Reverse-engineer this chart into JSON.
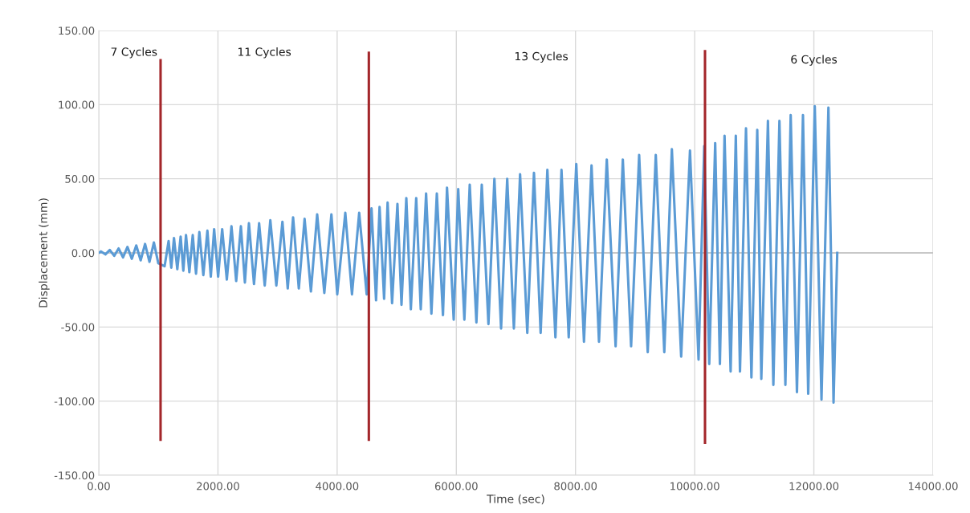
{
  "chart_data": {
    "type": "line",
    "xlabel": "Time (sec)",
    "ylabel": "Displacement (mm)",
    "xlim": [
      0,
      14000
    ],
    "ylim": [
      -150,
      150
    ],
    "xticks": [
      {
        "value": 0,
        "label": "0.00"
      },
      {
        "value": 2000,
        "label": "2000.00"
      },
      {
        "value": 4000,
        "label": "4000.00"
      },
      {
        "value": 6000,
        "label": "6000.00"
      },
      {
        "value": 8000,
        "label": "8000.00"
      },
      {
        "value": 10000,
        "label": "10000.00"
      },
      {
        "value": 12000,
        "label": "12000.00"
      },
      {
        "value": 14000,
        "label": "14000.00"
      }
    ],
    "yticks": [
      {
        "value": -150,
        "label": "-150.00"
      },
      {
        "value": -100,
        "label": "-100.00"
      },
      {
        "value": -50,
        "label": "-50.00"
      },
      {
        "value": 0,
        "label": "0.00"
      },
      {
        "value": 50,
        "label": "50.00"
      },
      {
        "value": 100,
        "label": "100.00"
      },
      {
        "value": 150,
        "label": "150.00"
      }
    ],
    "grid": true,
    "marker": "none",
    "line_style": "solid",
    "series": [
      {
        "color": "#5b9bd5",
        "x": [
          0,
          37,
          111,
          185,
          259,
          333,
          407,
          481,
          555,
          629,
          703,
          777,
          851,
          925,
          999,
          1105,
          1172,
          1217,
          1262,
          1318,
          1374,
          1419,
          1464,
          1520,
          1577,
          1632,
          1688,
          1755,
          1823,
          1880,
          1936,
          2003,
          2071,
          2149,
          2227,
          2306,
          2385,
          2452,
          2520,
          2605,
          2691,
          2785,
          2879,
          2980,
          3082,
          3171,
          3261,
          3357,
          3454,
          3560,
          3665,
          3785,
          3904,
          4002,
          4137,
          4249,
          4370,
          4496,
          4577,
          4653,
          4712,
          4788,
          4847,
          4922,
          5012,
          5080,
          5161,
          5237,
          5327,
          5403,
          5493,
          5582,
          5673,
          5776,
          5844,
          5956,
          6032,
          6135,
          6225,
          6337,
          6427,
          6539,
          6639,
          6751,
          6854,
          6966,
          7070,
          7191,
          7303,
          7415,
          7528,
          7663,
          7765,
          7886,
          8013,
          8142,
          8269,
          8394,
          8525,
          8673,
          8794,
          8933,
          9068,
          9212,
          9347,
          9490,
          9617,
          9773,
          9921,
          10065,
          10160,
          10244,
          10344,
          10423,
          10501,
          10603,
          10690,
          10760,
          10861,
          10952,
          11050,
          11118,
          11229,
          11320,
          11422,
          11522,
          11611,
          11716,
          11817,
          11905,
          12015,
          12128,
          12244,
          12330,
          12392
        ],
        "values": [
          0,
          1,
          -1,
          2,
          -2,
          3,
          -3,
          4,
          -4,
          5,
          -5,
          6,
          -6,
          7,
          -7,
          -9,
          8,
          -10,
          10,
          -11,
          11,
          -12,
          12,
          -13,
          12,
          -14,
          14,
          -15,
          15,
          -16,
          16,
          -16,
          16,
          -18,
          18,
          -19,
          18,
          -20,
          20,
          -21,
          20,
          -22,
          22,
          -22,
          21,
          -24,
          24,
          -24,
          23,
          -26,
          26,
          -27,
          26,
          -28,
          27,
          -28,
          27,
          -28,
          30,
          -32,
          31,
          -31,
          34,
          -34,
          33,
          -35,
          37,
          -38,
          37,
          -38,
          40,
          -41,
          40,
          -42,
          44,
          -45,
          43,
          -45,
          46,
          -47,
          46,
          -48,
          50,
          -51,
          50,
          -51,
          53,
          -54,
          54,
          -54,
          56,
          -57,
          56,
          -57,
          60,
          -60,
          59,
          -60,
          63,
          -63,
          63,
          -63,
          66,
          -67,
          66,
          -67,
          70,
          -70,
          69,
          -72,
          72,
          -75,
          74,
          -75,
          79,
          -80,
          79,
          -80,
          84,
          -84,
          83,
          -85,
          89,
          -89,
          89,
          -89,
          93,
          -94,
          93,
          -95,
          99,
          -99,
          98,
          -101,
          0
        ]
      },
      {
        "color": "#a3262a",
        "x": [
          1037,
          1037
        ],
        "values": [
          130,
          -126
        ]
      },
      {
        "color": "#a3262a",
        "x": [
          4532,
          4532
        ],
        "values": [
          135,
          -126
        ]
      },
      {
        "color": "#a3262a",
        "x": [
          10173,
          10173
        ],
        "values": [
          136,
          -128
        ]
      }
    ],
    "annotations": [
      "7 Cycles",
      "11 Cycles",
      "13 Cycles",
      "6 Cycles"
    ]
  }
}
